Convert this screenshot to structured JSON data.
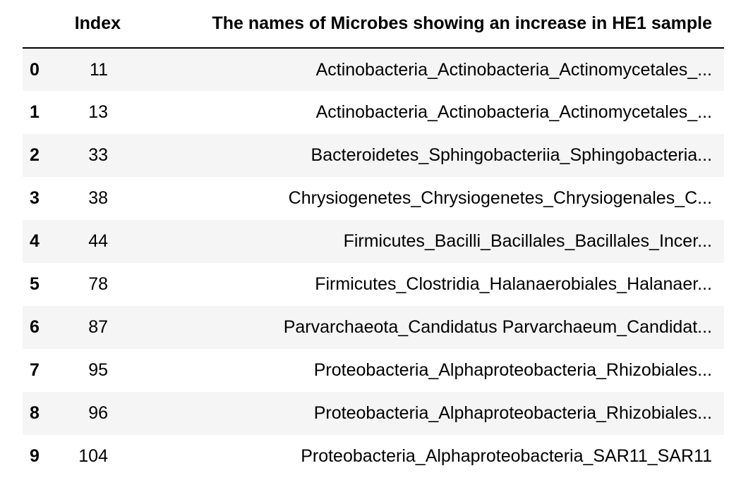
{
  "table": {
    "headers": {
      "index": "Index",
      "names": "The names of Microbes showing an increase in HE1 sample"
    },
    "rows": [
      {
        "label": "0",
        "index": "11",
        "name": "Actinobacteria_Actinobacteria_Actinomycetales_..."
      },
      {
        "label": "1",
        "index": "13",
        "name": "Actinobacteria_Actinobacteria_Actinomycetales_..."
      },
      {
        "label": "2",
        "index": "33",
        "name": "Bacteroidetes_Sphingobacteriia_Sphingobacteria..."
      },
      {
        "label": "3",
        "index": "38",
        "name": "Chrysiogenetes_Chrysiogenetes_Chrysiogenales_C..."
      },
      {
        "label": "4",
        "index": "44",
        "name": "Firmicutes_Bacilli_Bacillales_Bacillales_Incer..."
      },
      {
        "label": "5",
        "index": "78",
        "name": "Firmicutes_Clostridia_Halanaerobiales_Halanaer..."
      },
      {
        "label": "6",
        "index": "87",
        "name": "Parvarchaeota_Candidatus Parvarchaeum_Candidat..."
      },
      {
        "label": "7",
        "index": "95",
        "name": "Proteobacteria_Alphaproteobacteria_Rhizobiales..."
      },
      {
        "label": "8",
        "index": "96",
        "name": "Proteobacteria_Alphaproteobacteria_Rhizobiales..."
      },
      {
        "label": "9",
        "index": "104",
        "name": "Proteobacteria_Alphaproteobacteria_SAR11_SAR11"
      }
    ]
  },
  "colors": {
    "stripe": "#f5f5f5",
    "text": "#000000",
    "rule": "#000000"
  }
}
